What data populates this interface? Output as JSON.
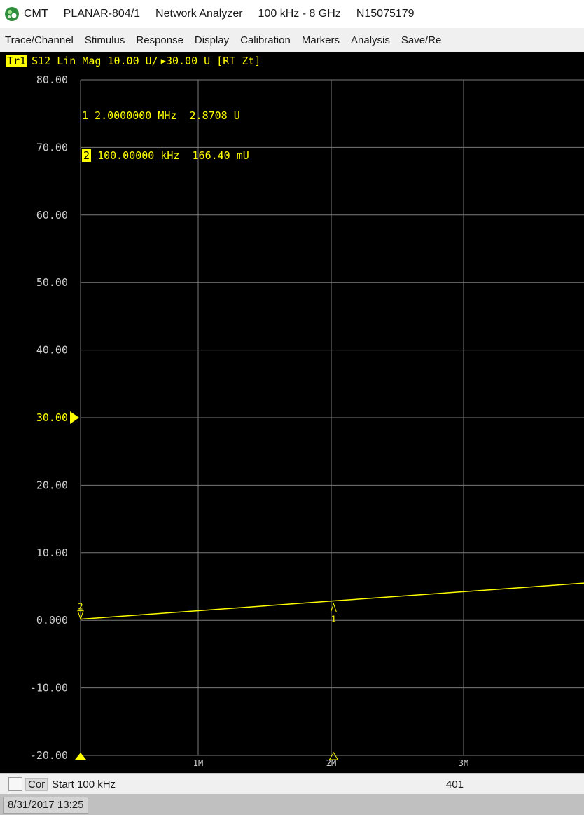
{
  "window": {
    "brand": "CMT",
    "model": "PLANAR-804/1",
    "product": "Network Analyzer",
    "range": "100 kHz - 8 GHz",
    "serial": "N15075179"
  },
  "menu": [
    "Trace/Channel",
    "Stimulus",
    "Response",
    "Display",
    "Calibration",
    "Markers",
    "Analysis",
    "Save/Re"
  ],
  "trace_header": {
    "badge": "Tr1",
    "text": "S12 Lin Mag 10.00 U/",
    "ref_text": "30.00 U [RT Zt]"
  },
  "markers": [
    {
      "num": "1",
      "freq": "2.0000000 MHz",
      "value": "2.8708 U",
      "active": false
    },
    {
      "num": "2",
      "freq": "100.00000 kHz",
      "value": "166.40 mU",
      "active": true
    }
  ],
  "y_ticks": [
    "80.00",
    "70.00",
    "60.00",
    "50.00",
    "40.00",
    "30.00",
    "20.00",
    "10.00",
    "0.000",
    "-10.00",
    "-20.00"
  ],
  "x_ticks": [
    "1M",
    "2M",
    "3M"
  ],
  "status": {
    "cor": "Cor",
    "start": "Start 100 kHz",
    "points": "401",
    "datetime": "8/31/2017 13:25"
  },
  "colors": {
    "trace": "#ffff00",
    "grid": "#7a7a7a",
    "background": "#000000"
  },
  "chart_data": {
    "type": "line",
    "y_unit": "U",
    "ylim": [
      -20,
      80
    ],
    "x_unit": "Hz",
    "xlim_visible": [
      100000,
      3880000
    ],
    "series": [
      {
        "x": [
          100000,
          2000000,
          3880000
        ],
        "y": [
          0.1664,
          2.8708,
          5.5
        ]
      }
    ],
    "reference_level": 30
  }
}
